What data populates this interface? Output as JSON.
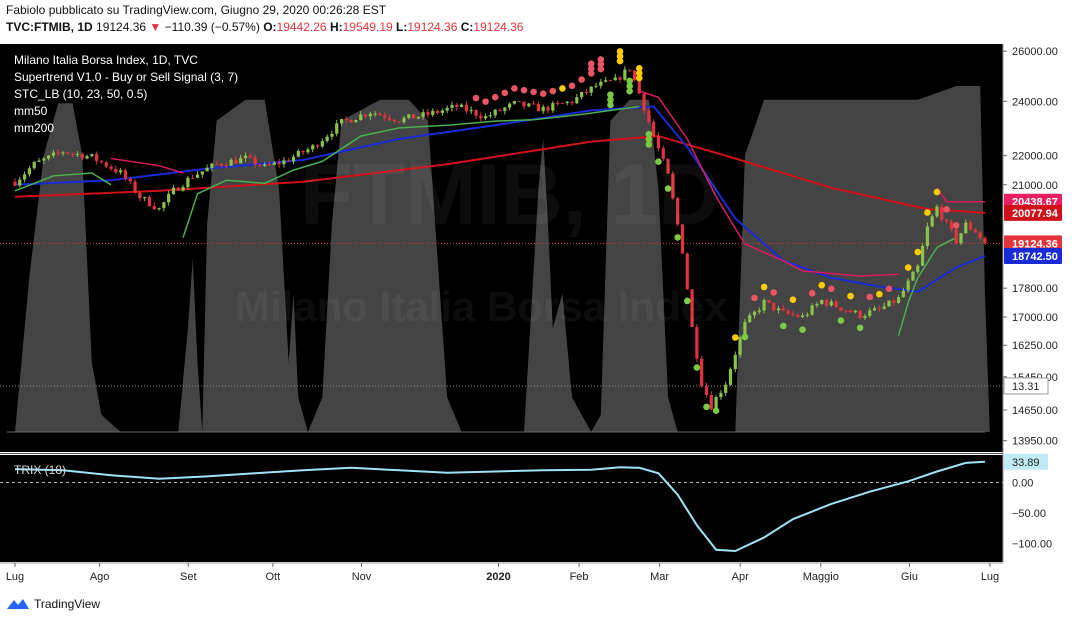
{
  "header": {
    "publisher": "Fabiolo pubblicato su TradingView.com, Giugno 29, 2020 00:26:28 EST",
    "symbol": "TVC:FTMIB, 1D",
    "last": "19124.36",
    "arrow": "▼",
    "change": "−110.39 (−0.57%)",
    "o_label": "O:",
    "o_val": "19442.26",
    "h_label": "H:",
    "h_val": "19549.19",
    "l_label": "L:",
    "l_val": "19124.36",
    "c_label": "C:",
    "c_val": "19124.36"
  },
  "legend": {
    "title": "Milano Italia Borsa Index, 1D, TVC",
    "supertrend": "Supertrend V1.0 - Buy or Sell Signal (3, 7)",
    "stc": "STC_LB (10, 23, 50, 0.5)",
    "mm50": "mm50",
    "mm200": "mm200"
  },
  "trix_label": "TRIX (18)",
  "watermark": {
    "big": "FTMIB, 1D",
    "small": "Milano Italia Borsa Index"
  },
  "footer": {
    "brand": "TradingView"
  },
  "colors": {
    "background": "#000000",
    "candle_up": "#8bc34a",
    "candle_down": "#e2343c",
    "supertrend_up": "#4caf50",
    "supertrend_down": "#d81b60",
    "mm50": "#1a2bd6",
    "mm200": "#d0101a",
    "stc_fill": "#505050",
    "trix": "#9fe3f5",
    "dot_green": "#7ac943",
    "dot_red": "#ea5465",
    "dot_yellow": "#ffcc00"
  },
  "chart_data": {
    "type": "candlestick",
    "x_ticks": [
      "Lug",
      "Ago",
      "Set",
      "Ott",
      "Nov",
      "2020",
      "Feb",
      "Mar",
      "Apr",
      "Maggio",
      "Giu",
      "Lug"
    ],
    "y_ticks": [
      "26000.00",
      "24000.00",
      "22000.00",
      "21000.00",
      "17800.00",
      "17000.00",
      "16250.00",
      "15450.00",
      "14650.00",
      "13950.00"
    ],
    "price_labels": [
      {
        "text": "20438.67",
        "color": "#e91e63",
        "value": 20438.67
      },
      {
        "text": "20077.94",
        "color": "#d0101a",
        "value": 20077.94
      },
      {
        "text": "19124.36",
        "color": "#e2343c",
        "value": 19124.36
      },
      {
        "text": "18742.50",
        "color": "#1a2bd6",
        "value": 18742.5
      }
    ],
    "stc_label": "13.31",
    "stc_value": 13.31,
    "trix_ticks": [
      "0.00",
      "−50.00",
      "−100.00"
    ],
    "trix_label_value": "33.89",
    "trix_value": 33.89,
    "ohlc_last": {
      "open": 19442.26,
      "high": 19549.19,
      "low": 19124.36,
      "close": 19124.36
    },
    "close_path": [
      [
        0,
        21100
      ],
      [
        4,
        21700
      ],
      [
        10,
        22150
      ],
      [
        16,
        21950
      ],
      [
        22,
        21400
      ],
      [
        26,
        20600
      ],
      [
        30,
        20200
      ],
      [
        33,
        20800
      ],
      [
        37,
        21300
      ],
      [
        42,
        21700
      ],
      [
        48,
        21900
      ],
      [
        52,
        21600
      ],
      [
        56,
        21800
      ],
      [
        62,
        22300
      ],
      [
        68,
        23200
      ],
      [
        74,
        23600
      ],
      [
        80,
        23300
      ],
      [
        86,
        23500
      ],
      [
        92,
        23800
      ],
      [
        98,
        23400
      ],
      [
        104,
        23900
      ],
      [
        110,
        23700
      ],
      [
        116,
        24000
      ],
      [
        121,
        24600
      ],
      [
        125,
        24800
      ],
      [
        128,
        25300
      ],
      [
        130,
        24300
      ],
      [
        133,
        22700
      ],
      [
        136,
        21300
      ],
      [
        139,
        18900
      ],
      [
        141,
        16700
      ],
      [
        143,
        15300
      ],
      [
        145,
        14750
      ],
      [
        148,
        15300
      ],
      [
        152,
        16800
      ],
      [
        156,
        17400
      ],
      [
        160,
        17100
      ],
      [
        164,
        17000
      ],
      [
        168,
        17450
      ],
      [
        172,
        17250
      ],
      [
        176,
        17050
      ],
      [
        180,
        17200
      ],
      [
        184,
        17500
      ],
      [
        188,
        18400
      ],
      [
        190,
        19600
      ],
      [
        192,
        20250
      ],
      [
        194,
        19700
      ],
      [
        196,
        19200
      ],
      [
        198,
        19700
      ],
      [
        200,
        19500
      ],
      [
        202,
        19124
      ]
    ],
    "mm50_path": [
      [
        0,
        21000
      ],
      [
        20,
        21150
      ],
      [
        40,
        21550
      ],
      [
        60,
        21850
      ],
      [
        80,
        22600
      ],
      [
        100,
        23100
      ],
      [
        120,
        23650
      ],
      [
        133,
        23800
      ],
      [
        140,
        22300
      ],
      [
        150,
        19900
      ],
      [
        160,
        18600
      ],
      [
        170,
        18100
      ],
      [
        180,
        17850
      ],
      [
        188,
        17700
      ],
      [
        196,
        18400
      ],
      [
        202,
        18742
      ]
    ],
    "mm200_path": [
      [
        0,
        20600
      ],
      [
        30,
        20800
      ],
      [
        60,
        21100
      ],
      [
        90,
        21700
      ],
      [
        120,
        22500
      ],
      [
        134,
        22700
      ],
      [
        150,
        21900
      ],
      [
        170,
        20900
      ],
      [
        190,
        20200
      ],
      [
        202,
        20078
      ]
    ],
    "supertrend_segments": [
      {
        "trend": "up",
        "points": [
          [
            0,
            20800
          ],
          [
            8,
            21300
          ],
          [
            16,
            21400
          ],
          [
            20,
            21000
          ]
        ]
      },
      {
        "trend": "down",
        "points": [
          [
            20,
            21900
          ],
          [
            30,
            21650
          ],
          [
            35,
            21400
          ]
        ]
      },
      {
        "trend": "up",
        "points": [
          [
            35,
            19300
          ],
          [
            38,
            20700
          ],
          [
            44,
            21150
          ],
          [
            52,
            21050
          ],
          [
            58,
            21500
          ],
          [
            64,
            21800
          ],
          [
            72,
            22700
          ],
          [
            80,
            23000
          ],
          [
            90,
            23100
          ],
          [
            100,
            23250
          ],
          [
            108,
            23300
          ],
          [
            118,
            23500
          ],
          [
            130,
            23800
          ]
        ]
      },
      {
        "trend": "down",
        "points": [
          [
            130,
            24400
          ],
          [
            134,
            24150
          ],
          [
            140,
            22600
          ],
          [
            146,
            20600
          ],
          [
            152,
            19100
          ],
          [
            160,
            18600
          ],
          [
            164,
            18300
          ],
          [
            176,
            18150
          ],
          [
            184,
            18200
          ]
        ]
      },
      {
        "trend": "up",
        "points": [
          [
            184,
            16500
          ],
          [
            186,
            17400
          ],
          [
            188,
            18100
          ],
          [
            192,
            19000
          ],
          [
            196,
            19300
          ]
        ]
      },
      {
        "trend": "down",
        "points": [
          [
            192,
            20900
          ],
          [
            194,
            20440
          ],
          [
            202,
            20440
          ]
        ]
      }
    ],
    "trix_path": [
      [
        0,
        22
      ],
      [
        10,
        20
      ],
      [
        20,
        12
      ],
      [
        30,
        6
      ],
      [
        40,
        10
      ],
      [
        50,
        15
      ],
      [
        60,
        20
      ],
      [
        70,
        24
      ],
      [
        80,
        20
      ],
      [
        90,
        16
      ],
      [
        100,
        18
      ],
      [
        110,
        20
      ],
      [
        120,
        21
      ],
      [
        126,
        25
      ],
      [
        130,
        24
      ],
      [
        134,
        15
      ],
      [
        138,
        -20
      ],
      [
        142,
        -70
      ],
      [
        146,
        -110
      ],
      [
        150,
        -112
      ],
      [
        156,
        -90
      ],
      [
        162,
        -60
      ],
      [
        170,
        -35
      ],
      [
        178,
        -15
      ],
      [
        186,
        2
      ],
      [
        192,
        18
      ],
      [
        198,
        32
      ],
      [
        202,
        33.89
      ]
    ],
    "stc_path": [
      [
        0,
        0
      ],
      [
        3,
        45
      ],
      [
        6,
        80
      ],
      [
        9,
        95
      ],
      [
        12,
        95
      ],
      [
        14,
        80
      ],
      [
        16,
        20
      ],
      [
        18,
        5
      ],
      [
        22,
        0
      ],
      [
        26,
        0
      ],
      [
        30,
        0
      ],
      [
        34,
        0
      ],
      [
        36,
        30
      ],
      [
        37,
        50
      ],
      [
        38,
        20
      ],
      [
        39,
        0
      ],
      [
        40,
        60
      ],
      [
        42,
        90
      ],
      [
        48,
        96
      ],
      [
        52,
        96
      ],
      [
        55,
        70
      ],
      [
        57,
        20
      ],
      [
        58,
        40
      ],
      [
        59,
        10
      ],
      [
        61,
        0
      ],
      [
        64,
        10
      ],
      [
        66,
        60
      ],
      [
        68,
        90
      ],
      [
        76,
        96
      ],
      [
        82,
        96
      ],
      [
        86,
        90
      ],
      [
        88,
        50
      ],
      [
        90,
        10
      ],
      [
        93,
        0
      ],
      [
        98,
        0
      ],
      [
        102,
        0
      ],
      [
        106,
        0
      ],
      [
        109,
        70
      ],
      [
        110,
        85
      ],
      [
        111,
        60
      ],
      [
        112,
        30
      ],
      [
        114,
        40
      ],
      [
        116,
        10
      ],
      [
        120,
        0
      ],
      [
        122,
        5
      ],
      [
        124,
        90
      ],
      [
        128,
        96
      ],
      [
        132,
        96
      ],
      [
        134,
        70
      ],
      [
        136,
        10
      ],
      [
        138,
        0
      ],
      [
        146,
        0
      ],
      [
        150,
        0
      ],
      [
        152,
        80
      ],
      [
        156,
        96
      ],
      [
        170,
        96
      ],
      [
        180,
        96
      ],
      [
        188,
        96
      ],
      [
        192,
        98
      ],
      [
        196,
        100
      ],
      [
        201,
        100
      ],
      [
        202,
        40
      ],
      [
        203,
        0
      ]
    ],
    "price_axis": {
      "min": 13700,
      "max": 26300,
      "scale": "log"
    },
    "trix_axis": {
      "min": -130,
      "max": 45
    }
  }
}
